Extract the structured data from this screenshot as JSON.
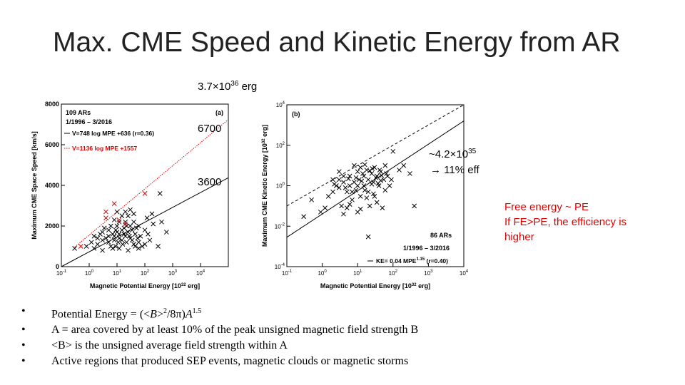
{
  "slide": {
    "title": "Max. CME Speed and Kinetic Energy from AR",
    "annotations": {
      "total_energy": {
        "base": "3.7×10",
        "exp": "36",
        "suffix": " erg"
      },
      "speed_high": "6700",
      "speed_low": "3600",
      "ke_value": {
        "base": "~4.2×10",
        "exp": "35"
      },
      "efficiency": "11% eff",
      "arrow": "→"
    },
    "red_note": [
      "Free energy ~ PE",
      "If FE>PE, the efficiency is",
      "higher"
    ],
    "bullets": [
      {
        "pre": "Potential Energy =  (<",
        "b": "B",
        "mid": ">",
        "sq": "2",
        "rest": "/8π)",
        "a": "A",
        "exp": "1.5"
      },
      {
        "text": "A = area covered by at least 10% of the peak unsigned magnetic field strength B"
      },
      {
        "text": "<B> is the unsigned average field strength within A"
      },
      {
        "text": "Active regions that produced SEP events, magnetic clouds or magnetic storms"
      }
    ]
  },
  "chart_data": [
    {
      "type": "scatter",
      "panel_label": "(a)",
      "xlabel": "Magnetic Potential Energy [10^32 erg]",
      "ylabel": "Maximum CME Space Speed [km/s]",
      "x_scale": "log",
      "xlim": [
        0.1,
        100000
      ],
      "ylim": [
        0,
        8000
      ],
      "x_ticks": [
        "10^-1",
        "10^0",
        "10^1",
        "10^2",
        "10^3",
        "10^4"
      ],
      "y_ticks": [
        0,
        2000,
        4000,
        6000,
        8000
      ],
      "legend": [
        {
          "text": "109 ARs",
          "color": "#000000"
        },
        {
          "text": "1/1996 – 3/2016",
          "color": "#000000"
        },
        {
          "text": "V=748 log MPE +636 (r=0.36)",
          "color": "#000000",
          "line": "solid"
        },
        {
          "text": "V=1136 log MPE +1557",
          "color": "#e00000",
          "line": "dotted"
        }
      ],
      "fit_lines": [
        {
          "slope": 748,
          "intercept": 636,
          "color": "#000000",
          "style": "solid"
        },
        {
          "slope": 1136,
          "intercept": 1557,
          "color": "#e00000",
          "style": "dotted"
        }
      ],
      "red_points": [
        [
          0.5,
          1000
        ],
        [
          4,
          2700
        ],
        [
          4,
          2400
        ],
        [
          8,
          3100
        ],
        [
          12,
          2300
        ],
        [
          20,
          2100
        ],
        [
          100,
          3600
        ]
      ],
      "points": [
        [
          0.3,
          900
        ],
        [
          0.8,
          1000
        ],
        [
          1.2,
          1200
        ],
        [
          1.5,
          900
        ],
        [
          2,
          1400
        ],
        [
          2.5,
          1600
        ],
        [
          3,
          1700
        ],
        [
          3.5,
          1900
        ],
        [
          4,
          1400
        ],
        [
          5,
          1200
        ],
        [
          5,
          1500
        ],
        [
          6,
          1000
        ],
        [
          7,
          900
        ],
        [
          7,
          1600
        ],
        [
          8,
          1500
        ],
        [
          8,
          1300
        ],
        [
          9,
          1800
        ],
        [
          10,
          1700
        ],
        [
          10,
          2000
        ],
        [
          12,
          1600
        ],
        [
          12,
          1400
        ],
        [
          12,
          900
        ],
        [
          15,
          1800
        ],
        [
          15,
          1300
        ],
        [
          18,
          1900
        ],
        [
          20,
          1500
        ],
        [
          20,
          2200
        ],
        [
          22,
          1200
        ],
        [
          25,
          2500
        ],
        [
          25,
          1700
        ],
        [
          30,
          1400
        ],
        [
          30,
          2000
        ],
        [
          35,
          1800
        ],
        [
          40,
          1100
        ],
        [
          40,
          2200
        ],
        [
          45,
          1600
        ],
        [
          50,
          1900
        ],
        [
          55,
          1400
        ],
        [
          60,
          2000
        ],
        [
          60,
          900
        ],
        [
          70,
          1500
        ],
        [
          80,
          1000
        ],
        [
          100,
          1800
        ],
        [
          120,
          2400
        ],
        [
          150,
          1300
        ],
        [
          180,
          2600
        ],
        [
          200,
          2100
        ],
        [
          300,
          1000
        ],
        [
          350,
          3600
        ],
        [
          10,
          2700
        ],
        [
          15,
          2500
        ],
        [
          20,
          2700
        ],
        [
          30,
          2800
        ],
        [
          40,
          2600
        ],
        [
          8,
          2300
        ],
        [
          6,
          2000
        ],
        [
          5,
          1800
        ],
        [
          3,
          1300
        ],
        [
          2,
          1100
        ],
        [
          1.5,
          1500
        ],
        [
          9,
          1000
        ],
        [
          11,
          1200
        ],
        [
          16,
          1100
        ],
        [
          25,
          800
        ],
        [
          35,
          1300
        ],
        [
          45,
          1000
        ],
        [
          3,
          800
        ],
        [
          60,
          1200
        ],
        [
          100,
          1100
        ],
        [
          130,
          1600
        ],
        [
          12,
          2200
        ],
        [
          18,
          1600
        ],
        [
          22,
          2000
        ],
        [
          28,
          1500
        ],
        [
          400,
          2200
        ],
        [
          600,
          1700
        ]
      ]
    },
    {
      "type": "scatter",
      "panel_label": "(b)",
      "xlabel": "Magnetic Potential Energy [10^32 erg]",
      "ylabel": "Maximum CME Kinetic Energy [10^32 erg]",
      "x_scale": "log",
      "y_scale": "log",
      "xlim": [
        0.1,
        10000
      ],
      "ylim": [
        0.0001,
        10000
      ],
      "x_ticks": [
        "10^-1",
        "10^0",
        "10^1",
        "10^2",
        "10^3",
        "10^4"
      ],
      "y_ticks": [
        "10^-4",
        "10^-2",
        "10^0",
        "10^2",
        "10^4"
      ],
      "legend": [
        {
          "text": "86 ARs",
          "color": "#000000"
        },
        {
          "text": "1/1996 – 3/2016",
          "color": "#000000"
        },
        {
          "text": "KE= 0.04 MPE^1.15 (r=0.40)",
          "color": "#000000",
          "line": "solid"
        }
      ],
      "fit_lines": [
        {
          "coef": 0.04,
          "power": 1.15,
          "color": "#000000",
          "style": "solid"
        },
        {
          "coef": 1,
          "power": 1,
          "color": "#000000",
          "style": "dashed"
        }
      ],
      "points": [
        [
          0.3,
          0.03
        ],
        [
          0.9,
          0.05
        ],
        [
          1.5,
          0.3
        ],
        [
          2,
          0.5
        ],
        [
          2.5,
          1
        ],
        [
          3,
          0.8
        ],
        [
          3,
          2
        ],
        [
          3.5,
          0.1
        ],
        [
          4,
          1.5
        ],
        [
          4,
          0.04
        ],
        [
          5,
          0.5
        ],
        [
          5,
          0.08
        ],
        [
          6,
          1
        ],
        [
          6,
          3
        ],
        [
          7,
          0.2
        ],
        [
          8,
          1.5
        ],
        [
          9,
          0.6
        ],
        [
          10,
          1
        ],
        [
          10,
          5
        ],
        [
          11,
          2
        ],
        [
          12,
          0.3
        ],
        [
          12,
          0.07
        ],
        [
          15,
          3
        ],
        [
          15,
          1
        ],
        [
          18,
          6
        ],
        [
          20,
          2
        ],
        [
          20,
          0.5
        ],
        [
          22,
          0.1
        ],
        [
          25,
          4
        ],
        [
          28,
          1.5
        ],
        [
          30,
          8
        ],
        [
          30,
          0.3
        ],
        [
          35,
          3
        ],
        [
          40,
          1
        ],
        [
          45,
          5
        ],
        [
          50,
          0.08
        ],
        [
          55,
          2
        ],
        [
          60,
          0.6
        ],
        [
          60,
          10
        ],
        [
          70,
          3
        ],
        [
          80,
          1
        ],
        [
          100,
          50
        ],
        [
          150,
          6
        ],
        [
          200,
          10
        ],
        [
          300,
          4
        ],
        [
          400,
          0.1
        ],
        [
          2,
          2
        ],
        [
          3,
          5
        ],
        [
          4,
          3
        ],
        [
          8,
          10
        ],
        [
          12,
          8
        ],
        [
          14,
          4
        ],
        [
          16,
          0.6
        ],
        [
          25,
          1.2
        ],
        [
          35,
          0.15
        ],
        [
          45,
          1.8
        ],
        [
          7,
          0.5
        ],
        [
          9,
          2.5
        ],
        [
          18,
          0.25
        ],
        [
          10,
          0.05
        ],
        [
          0.5,
          0.2
        ],
        [
          20,
          0.003
        ],
        [
          1.2,
          0.08
        ],
        [
          6,
          0.12
        ],
        [
          26,
          7
        ],
        [
          33,
          2.5
        ],
        [
          42,
          6
        ],
        [
          65,
          4
        ],
        [
          90,
          2
        ],
        [
          2.2,
          1.2
        ],
        [
          4.5,
          0.8
        ],
        [
          13,
          1.7
        ],
        [
          28,
          0.4
        ],
        [
          48,
          3.2
        ],
        [
          5.5,
          2.2
        ],
        [
          16,
          11
        ],
        [
          22,
          5.5
        ],
        [
          38,
          1.3
        ]
      ]
    }
  ]
}
